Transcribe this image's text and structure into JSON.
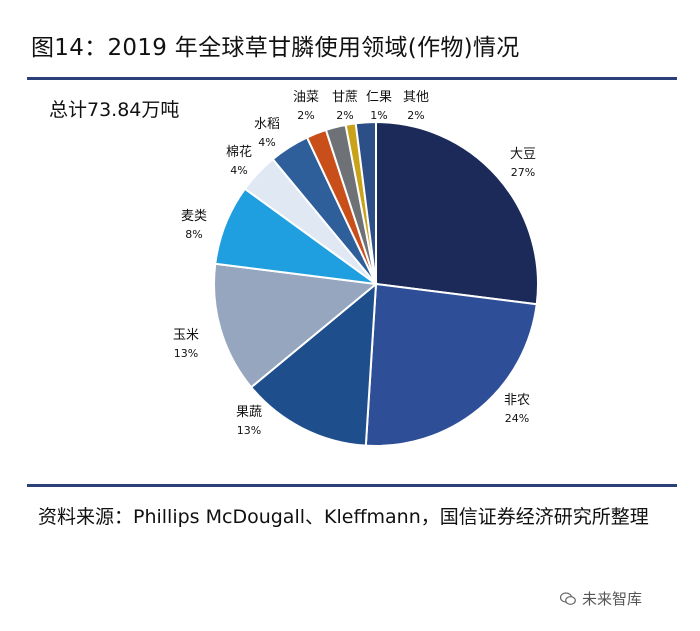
{
  "header": {
    "title": "图14：2019 年全球草甘膦使用领域(作物)情况"
  },
  "footer": {
    "source": "资料来源：Phillips McDougall、Kleffmann，国信证券经济研究所整理"
  },
  "watermark": {
    "text": "未来智库",
    "icon": "wechat-icon"
  },
  "chart_data": {
    "type": "pie",
    "title": "",
    "annotation": "总计73.84万吨",
    "start_angle_deg": 0,
    "direction": "clockwise",
    "slices": [
      {
        "label": "大豆",
        "value": 27,
        "value_label": "27%",
        "color": "#1b2a58"
      },
      {
        "label": "非农",
        "value": 24,
        "value_label": "24%",
        "color": "#2e4f98"
      },
      {
        "label": "果蔬",
        "value": 13,
        "value_label": "13%",
        "color": "#1f4e8c"
      },
      {
        "label": "玉米",
        "value": 13,
        "value_label": "13%",
        "color": "#96a6bf"
      },
      {
        "label": "麦类",
        "value": 8,
        "value_label": "8%",
        "color": "#1f9fe0"
      },
      {
        "label": "棉花",
        "value": 4,
        "value_label": "4%",
        "color": "#dfe8f3"
      },
      {
        "label": "水稻",
        "value": 4,
        "value_label": "4%",
        "color": "#2e5f9b"
      },
      {
        "label": "油菜",
        "value": 2,
        "value_label": "2%",
        "color": "#c84f1a"
      },
      {
        "label": "甘蔗",
        "value": 2,
        "value_label": "2%",
        "color": "#6e7277"
      },
      {
        "label": "仁果",
        "value": 1,
        "value_label": "1%",
        "color": "#c9a21a"
      },
      {
        "label": "其他",
        "value": 2,
        "value_label": "2%",
        "color": "#2d4f88"
      }
    ]
  }
}
